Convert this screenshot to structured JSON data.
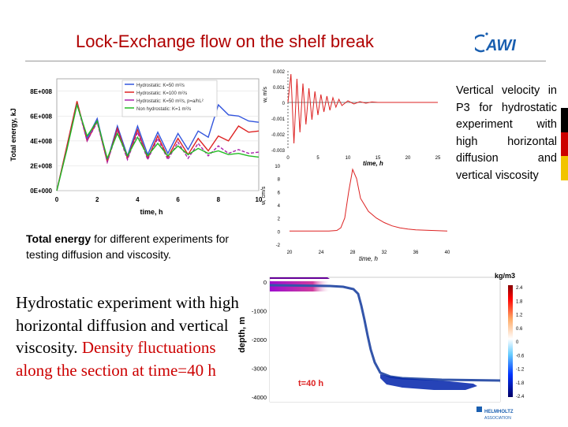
{
  "title": "Lock-Exchange flow on the shelf break",
  "logo": {
    "text": "AWI",
    "icon": "awi-logo-icon"
  },
  "footer_logo": {
    "line1": "HELMHOLTZ",
    "line2": "ASSOCIATION",
    "icon": "helmholtz-logo-icon"
  },
  "captions": {
    "energy_bold": "Total energy",
    "energy_rest": " for different experiments for testing diffusion and viscosity.",
    "vertical": "Vertical velocity in P3 for hydrostatic experiment with high horizontal diffusion and vertical viscosity",
    "hydro_black": "Hydrostatic experiment with high horizontal diffusion and vertical viscosity. ",
    "hydro_red": "Density fluctuations along the section at time=40 h"
  },
  "chart_data": [
    {
      "type": "line",
      "xlabel": "time, h",
      "ylabel": "Total energy, kJ",
      "xlim": [
        0,
        10
      ],
      "ylim": [
        0,
        900000000
      ],
      "xticks": [
        "0",
        "2",
        "4",
        "6",
        "8",
        "10"
      ],
      "yticks": [
        "0E+000",
        "2E+008",
        "4E+008",
        "6E+008",
        "8E+008"
      ],
      "legend_position": "top-right",
      "series": [
        {
          "name": "Hydrostatic: K=50 m²/s",
          "color": "#3355dd",
          "x": [
            0,
            0.5,
            1,
            1.5,
            2,
            2.5,
            3,
            3.5,
            4,
            4.5,
            5,
            5.5,
            6,
            6.5,
            7,
            7.5,
            8,
            8.5,
            9,
            9.5,
            10
          ],
          "y": [
            0,
            350000000,
            710000000,
            420000000,
            580000000,
            240000000,
            520000000,
            280000000,
            520000000,
            290000000,
            470000000,
            300000000,
            460000000,
            330000000,
            480000000,
            430000000,
            690000000,
            610000000,
            600000000,
            560000000,
            550000000
          ]
        },
        {
          "name": "Hydrostatic: K=100 m²/s",
          "color": "#dd2222",
          "x": [
            0,
            0.5,
            1,
            1.5,
            2,
            2.5,
            3,
            3.5,
            4,
            4.5,
            5,
            5.5,
            6,
            6.5,
            7,
            7.5,
            8,
            8.5,
            9,
            9.5,
            10
          ],
          "y": [
            0,
            360000000,
            720000000,
            400000000,
            560000000,
            230000000,
            500000000,
            260000000,
            490000000,
            260000000,
            440000000,
            270000000,
            420000000,
            290000000,
            420000000,
            320000000,
            440000000,
            400000000,
            520000000,
            470000000,
            480000000
          ]
        },
        {
          "name": "Hydrostatic: K=50 m²/s, p=a/hL²",
          "color": "#aa22aa",
          "x": [
            0,
            0.5,
            1,
            1.5,
            2,
            2.5,
            3,
            3.5,
            4,
            4.5,
            5,
            5.5,
            6,
            6.5,
            7,
            7.5,
            8,
            8.5,
            9,
            9.5,
            10
          ],
          "y": [
            0,
            340000000,
            700000000,
            400000000,
            550000000,
            230000000,
            480000000,
            250000000,
            470000000,
            250000000,
            420000000,
            250000000,
            390000000,
            260000000,
            380000000,
            280000000,
            360000000,
            300000000,
            330000000,
            300000000,
            310000000
          ]
        },
        {
          "name": "Non hydrostatic: K=1 m²/s",
          "color": "#22bb22",
          "x": [
            0,
            0.5,
            1,
            1.5,
            2,
            2.5,
            3,
            3.5,
            4,
            4.5,
            5,
            5.5,
            6,
            6.5,
            7,
            7.5,
            8,
            8.5,
            9,
            9.5,
            10
          ],
          "y": [
            0,
            330000000,
            690000000,
            440000000,
            560000000,
            260000000,
            460000000,
            280000000,
            430000000,
            280000000,
            380000000,
            280000000,
            360000000,
            290000000,
            340000000,
            300000000,
            320000000,
            290000000,
            300000000,
            280000000,
            270000000
          ]
        }
      ]
    },
    {
      "type": "line",
      "xlabel": "time, h",
      "ylabel": "w, m/s",
      "xlim": [
        0,
        25
      ],
      "ylim": [
        -0.003,
        0.002
      ],
      "xticks": [
        "0",
        "5",
        "10",
        "15",
        "20",
        "25"
      ],
      "yticks": [
        "0.002",
        "0.001",
        "0",
        "-0.001",
        "-0.002",
        "-0.003"
      ],
      "series": [
        {
          "color": "#dd2222",
          "x": [
            0,
            0.5,
            1,
            1.5,
            2,
            2.5,
            3,
            3.5,
            4,
            4.5,
            5,
            5.5,
            6,
            6.5,
            7,
            7.5,
            8,
            8.5,
            9,
            10,
            11,
            12,
            13,
            14,
            15,
            16,
            17,
            18,
            19,
            20,
            21,
            22,
            23,
            24,
            25
          ],
          "y": [
            0,
            0.0018,
            -0.0026,
            0.0015,
            -0.0019,
            0.0012,
            -0.0014,
            0.0009,
            -0.0011,
            0.0007,
            -0.0008,
            0.0005,
            -0.0006,
            0.0004,
            -0.0005,
            0.0003,
            -0.0003,
            0.0002,
            -0.0002,
            0.0001,
            -0.0001,
            5e-05,
            -5e-05,
            3e-05,
            0,
            0,
            0,
            0,
            0,
            0,
            0,
            0,
            0,
            0,
            0
          ]
        }
      ]
    },
    {
      "type": "line",
      "xlabel": "time, h",
      "ylabel": "w, cm/s",
      "xlim": [
        20,
        40
      ],
      "ylim": [
        -2,
        10
      ],
      "xticks": [
        "20",
        "24",
        "28",
        "32",
        "36",
        "40"
      ],
      "yticks": [
        "10",
        "8",
        "6",
        "4",
        "2",
        "0",
        "-2"
      ],
      "series": [
        {
          "color": "#dd2222",
          "x": [
            20,
            22,
            24,
            25,
            26,
            26.5,
            27,
            27.5,
            28,
            28.5,
            29,
            30,
            31,
            32,
            33,
            34,
            35,
            36,
            38,
            40
          ],
          "y": [
            0,
            0,
            0,
            0,
            0.1,
            0.5,
            2,
            6,
            9.4,
            8,
            5,
            3,
            2,
            1.3,
            0.8,
            0.5,
            0.3,
            0.2,
            0.1,
            0
          ]
        }
      ]
    },
    {
      "type": "heatmap",
      "ylabel": "depth, m",
      "ylim": [
        -4000,
        0
      ],
      "yticks": [
        "0",
        "-1000",
        "-2000",
        "-3000",
        "-4000"
      ],
      "annotation": "t=40 h",
      "colorbar": {
        "label": "kg/m3",
        "ticks": [
          "2.4",
          "1.8",
          "1.2",
          "0.6",
          "0",
          "-0.6",
          "-1.2",
          "-1.8",
          "-2.4"
        ]
      }
    }
  ]
}
